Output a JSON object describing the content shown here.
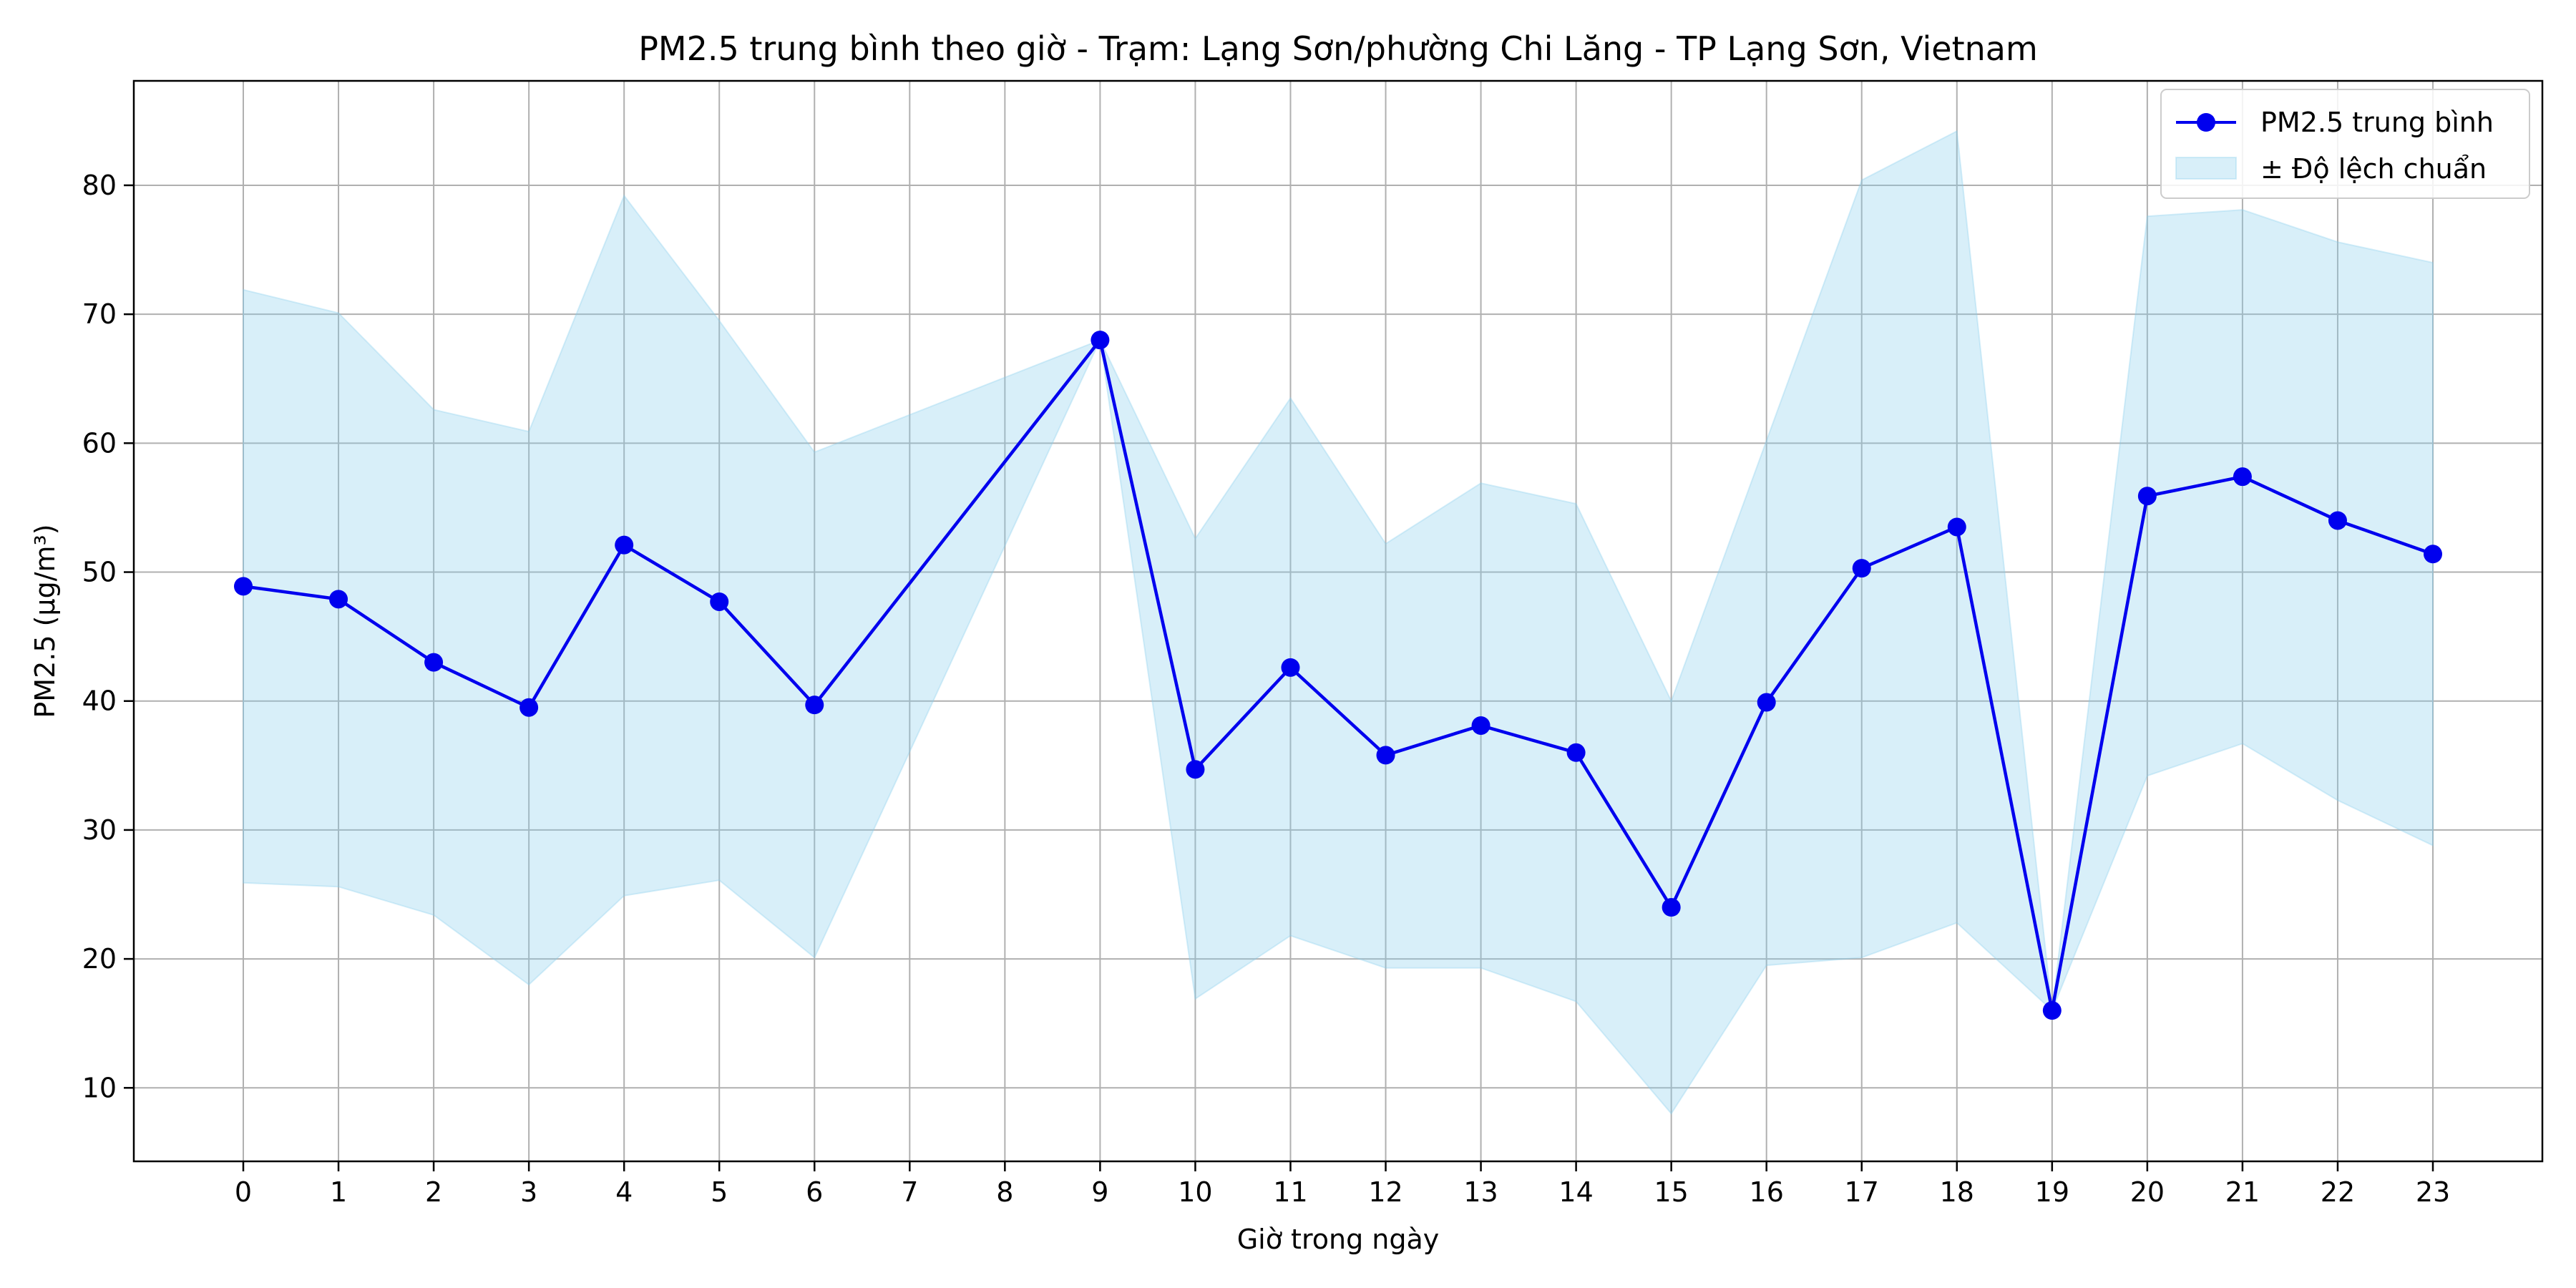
{
  "chart_data": {
    "type": "line",
    "title": "PM2.5 trung bình theo giờ - Trạm: Lạng Sơn/phường Chi Lăng - TP Lạng Sơn, Vietnam",
    "xlabel": "Giờ trong ngày",
    "ylabel": "PM2.5 (µg/m³)",
    "x": [
      0,
      1,
      2,
      3,
      4,
      5,
      6,
      7,
      8,
      9,
      10,
      11,
      12,
      13,
      14,
      15,
      16,
      17,
      18,
      19,
      20,
      21,
      22,
      23
    ],
    "xticks": [
      0,
      1,
      2,
      3,
      4,
      5,
      6,
      7,
      8,
      9,
      10,
      11,
      12,
      13,
      14,
      15,
      16,
      17,
      18,
      19,
      20,
      21,
      22,
      23
    ],
    "yticks": [
      10,
      20,
      30,
      40,
      50,
      60,
      70,
      80
    ],
    "xlim": [
      -1.15,
      24.15
    ],
    "ylim": [
      4.3,
      88.1
    ],
    "grid": true,
    "legend_position": "top-right",
    "series": [
      {
        "name": "PM2.5 trung bình",
        "color": "#0000ee",
        "marker": "circle",
        "values": [
          48.9,
          47.9,
          43.0,
          39.5,
          52.1,
          47.7,
          39.7,
          null,
          null,
          68.0,
          34.7,
          42.6,
          35.8,
          38.1,
          36.0,
          24.0,
          39.9,
          50.3,
          53.5,
          16.0,
          55.9,
          57.4,
          54.0,
          51.4
        ]
      }
    ],
    "band": {
      "name": "± Độ lệch chuẩn",
      "color": "#87ceeb",
      "opacity": 0.32,
      "upper": [
        71.9,
        70.1,
        62.6,
        60.9,
        79.2,
        69.5,
        59.3,
        null,
        null,
        68.0,
        52.6,
        63.5,
        52.2,
        56.9,
        55.3,
        40.0,
        60.2,
        80.4,
        84.2,
        16.0,
        77.6,
        78.1,
        75.6,
        74.0
      ],
      "lower": [
        25.9,
        25.6,
        23.4,
        18.0,
        24.9,
        26.1,
        20.1,
        null,
        null,
        68.0,
        16.9,
        21.8,
        19.3,
        19.3,
        16.7,
        8.0,
        19.5,
        20.1,
        22.8,
        16.0,
        34.2,
        36.7,
        32.3,
        28.8
      ]
    }
  }
}
